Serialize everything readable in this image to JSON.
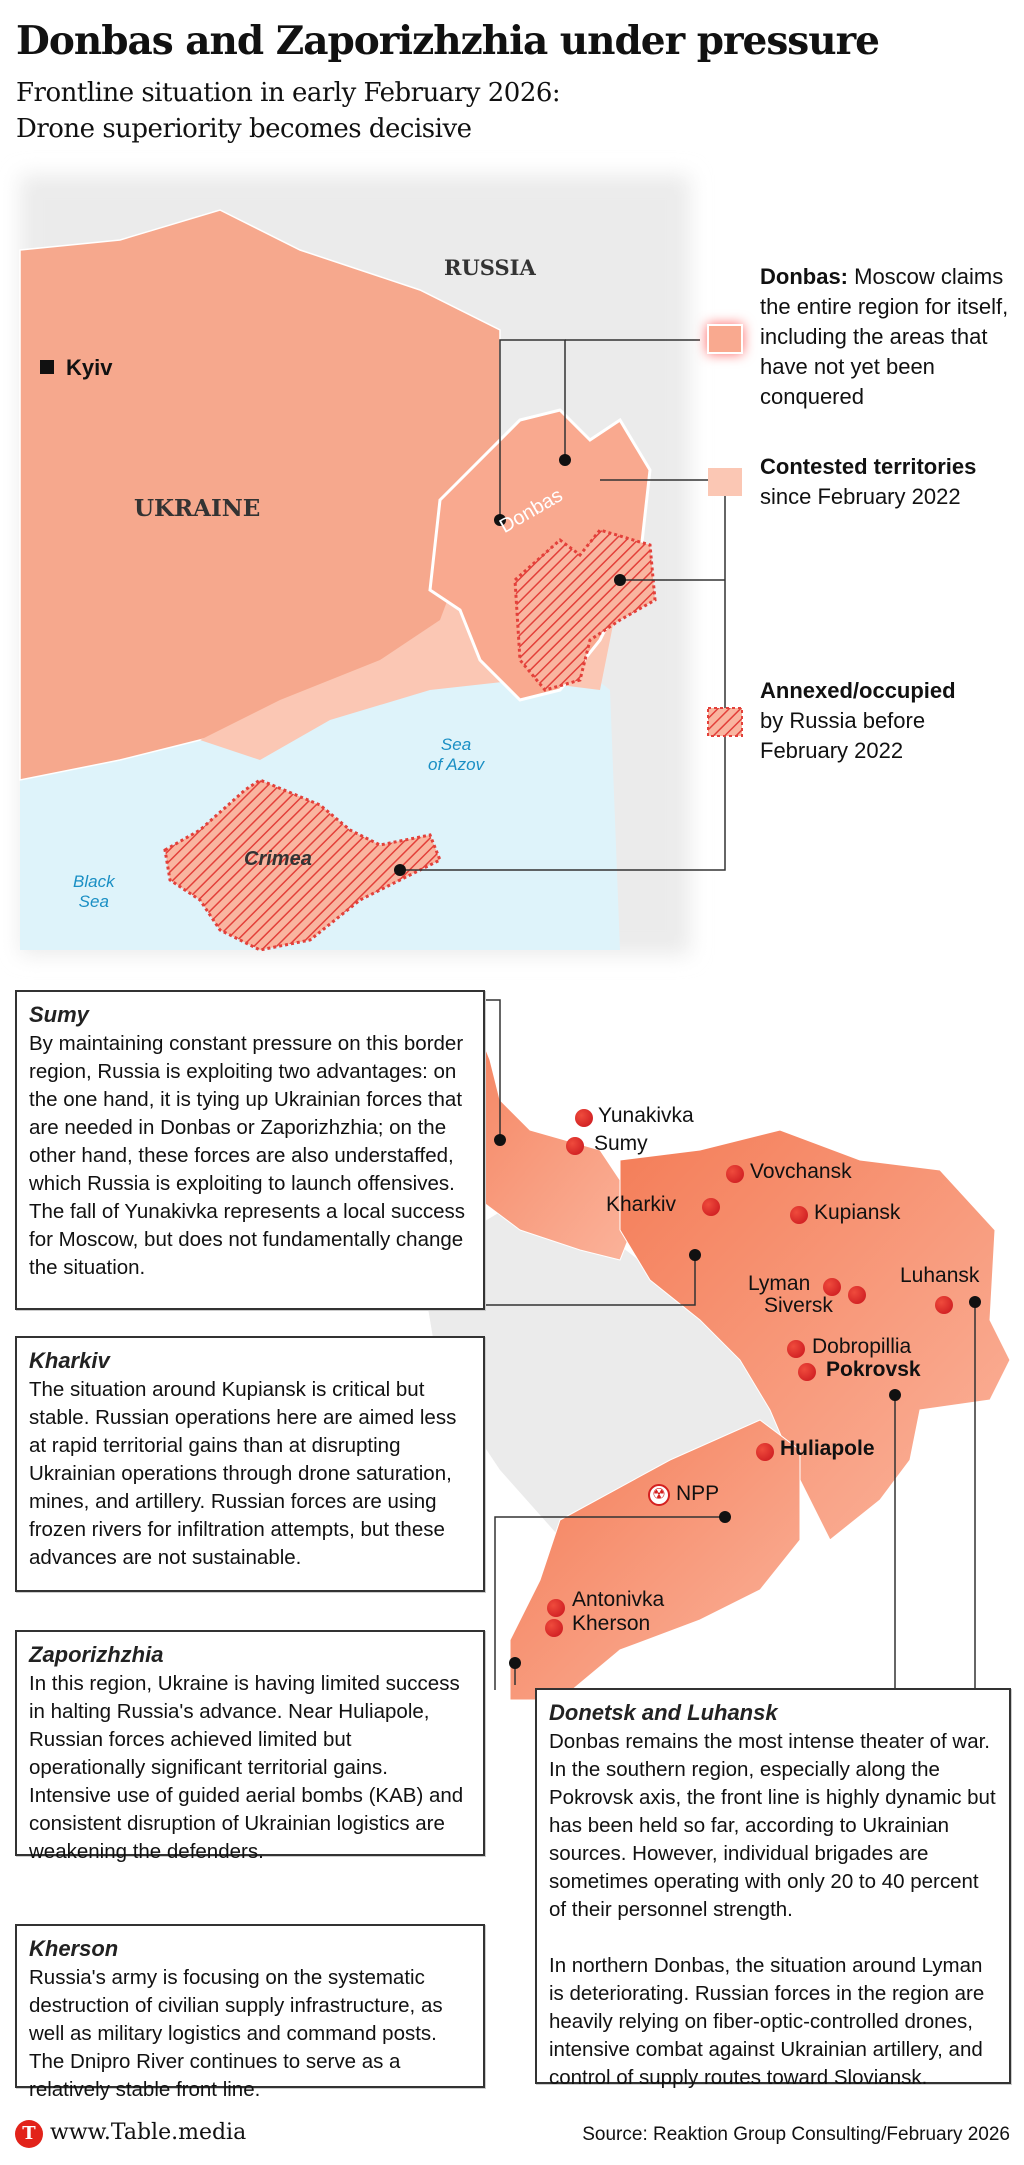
{
  "header": {
    "title": "Donbas and Zaporizhzhia under pressure",
    "subtitle_line1": "Frontline situation in early February 2026:",
    "subtitle_line2": "Drone superiority becomes decisive"
  },
  "top_map": {
    "labels": {
      "russia": "RUSSIA",
      "ukraine": "UKRAINE",
      "kyiv": "Kyiv",
      "donbas": "Donbas",
      "sea_of_azov_1": "Sea",
      "sea_of_azov_2": "of Azov",
      "black_sea_1": "Black",
      "black_sea_2": "Sea",
      "crimea": "Crimea"
    },
    "colors": {
      "donbas": "#f9a98f",
      "contested": "#fbc7b4",
      "ukraine": "#f6a88d",
      "russia": "#ebebeb",
      "sea": "#def3fa",
      "annexed_hatch": "#e3403a"
    }
  },
  "legend": [
    {
      "bold": "Donbas:",
      "text": "Moscow claims the entire region for itself, including the areas that have not yet been conquered"
    },
    {
      "bold": "Contested territories",
      "text": "since February 2022"
    },
    {
      "bold": "Annexed/occupied",
      "text": "by Russia before February 2022"
    }
  ],
  "cities": [
    {
      "name": "Yunakivka"
    },
    {
      "name": "Sumy"
    },
    {
      "name": "Vovchansk"
    },
    {
      "name": "Kharkiv"
    },
    {
      "name": "Kupiansk"
    },
    {
      "name": "Lyman"
    },
    {
      "name": "Siversk"
    },
    {
      "name": "Luhansk"
    },
    {
      "name": "Dobropillia"
    },
    {
      "name": "Pokrovsk"
    },
    {
      "name": "Huliapole"
    },
    {
      "name": "NPP",
      "icon": "radiation-icon"
    },
    {
      "name": "Antonivka"
    },
    {
      "name": "Kherson"
    }
  ],
  "boxes": {
    "sumy": {
      "title": "Sumy",
      "text": "By maintaining constant pressure on this border region, Russia is exploiting two advantages: on the one hand, it is tying up Ukrainian forces that are needed in Donbas or Zaporizhzhia; on the other hand, these forces are also understaffed, which Russia is exploiting to launch offensives. The fall of Yunakivka represents a local success for Moscow, but does not fundamentally change the situation."
    },
    "kharkiv": {
      "title": "Kharkiv",
      "text": "The situation around Kupiansk is critical but stable. Russian operations here are aimed less at rapid territorial gains than at disrupting Ukrainian operations through drone saturation, mines, and artillery. Russian forces are using frozen rivers for infiltration attempts, but these advances are not sustainable."
    },
    "zaporizhzhia": {
      "title": "Zaporizhzhia",
      "text": "In this region, Ukraine is having limited success in halting Russia's advance. Near Huliapole, Russian forces achieved limited but operationally significant territorial gains. Intensive use of guided aerial bombs (KAB) and consistent disruption of Ukrainian logistics are weakening the defenders."
    },
    "kherson": {
      "title": "Kherson",
      "text": "Russia's army is focusing on the systematic destruction of civilian supply infrastructure, as well as military logistics and command posts. The Dnipro River continues to serve as a relatively stable front line."
    },
    "donetsk": {
      "title": "Donetsk and Luhansk",
      "text1": "Donbas remains the most intense theater of war. In the southern region, especially along the Pokrovsk axis, the front line is highly dynamic but has been held so far, according to Ukrainian sources. However, individual brigades are sometimes operating with only 20 to 40 percent of their personnel strength.",
      "text2": "In northern Donbas, the situation around Lyman is deteriorating. Russian forces in the region are heavily relying on fiber-optic-controlled drones, intensive combat against Ukrainian artillery, and control of supply routes toward Sloviansk."
    }
  },
  "footer": {
    "brand": "www.Table.media",
    "logo_letter": "T",
    "source": "Source: Reaktion Group Consulting/February 2026"
  }
}
